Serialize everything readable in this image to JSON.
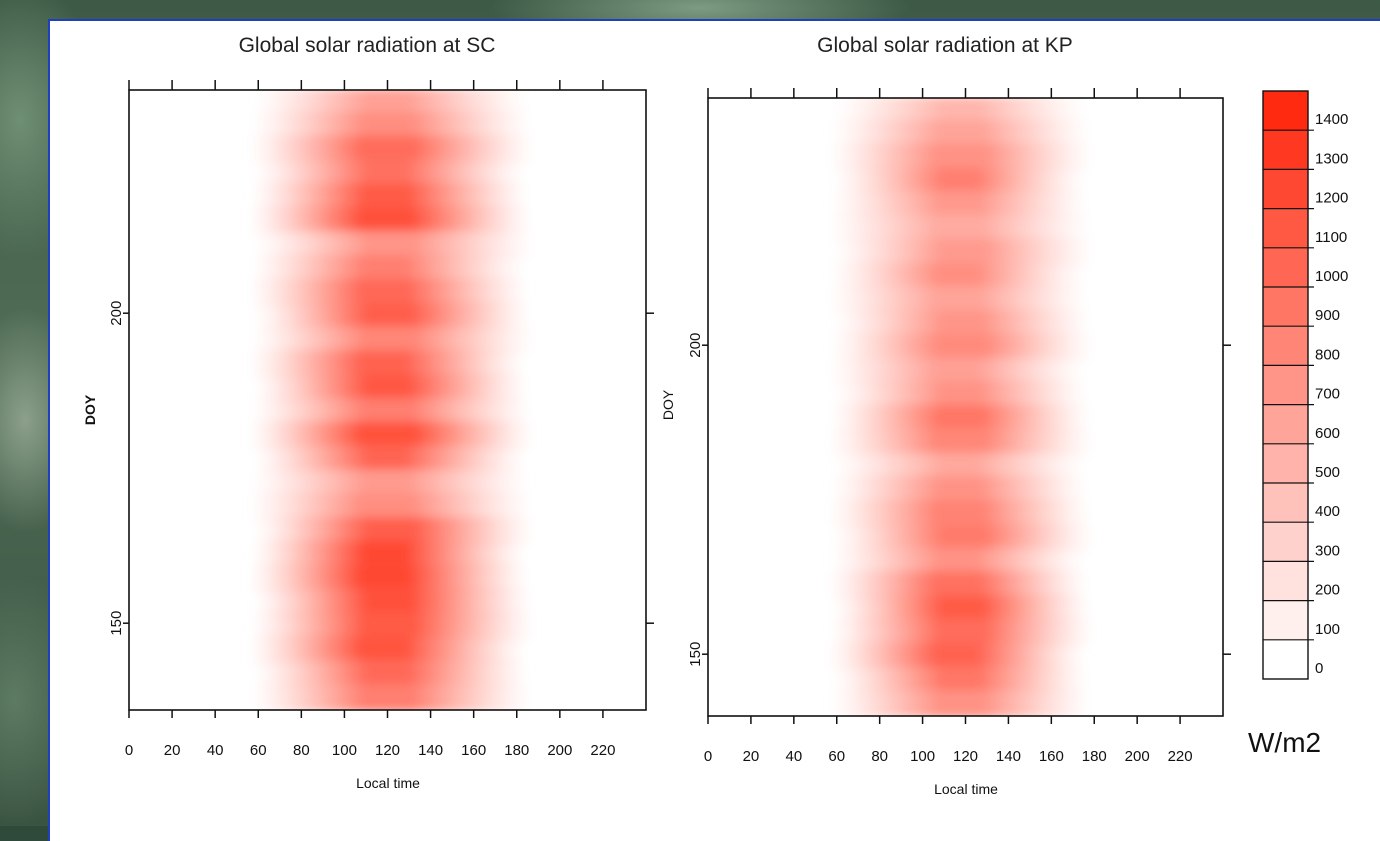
{
  "chart_data": [
    {
      "type": "heatmap",
      "title": "Global solar radiation at SC",
      "xlabel": "Local time",
      "ylabel": "DOY",
      "xlim": [
        0,
        240
      ],
      "ylim": [
        136,
        236
      ],
      "xticks": [
        "0",
        "20",
        "40",
        "60",
        "80",
        "100",
        "120",
        "140",
        "160",
        "180",
        "200",
        "220"
      ],
      "yticks": [
        "150",
        "200"
      ],
      "peak_center_x": 120,
      "active_range_x": [
        62,
        180
      ],
      "band_intensities": [
        0.52,
        0.62,
        0.8,
        0.78,
        0.9,
        0.96,
        0.58,
        0.7,
        0.82,
        0.88,
        0.66,
        0.86,
        0.92,
        0.7,
        0.95,
        0.85,
        0.55,
        0.62,
        0.88,
        1.0,
        1.0,
        0.96,
        0.9,
        0.94,
        0.82,
        0.7
      ]
    },
    {
      "type": "heatmap",
      "title": "Global solar radiation at KP",
      "xlabel": "Local time",
      "ylabel": "DOY",
      "xlim": [
        0,
        240
      ],
      "ylim": [
        140,
        240
      ],
      "xticks": [
        "0",
        "20",
        "40",
        "60",
        "80",
        "100",
        "120",
        "140",
        "160",
        "180",
        "200",
        "220"
      ],
      "yticks": [
        "150",
        "200"
      ],
      "peak_center_x": 118,
      "active_range_x": [
        62,
        172
      ],
      "band_intensities": [
        0.4,
        0.5,
        0.6,
        0.7,
        0.56,
        0.46,
        0.55,
        0.62,
        0.5,
        0.58,
        0.64,
        0.52,
        0.6,
        0.75,
        0.66,
        0.48,
        0.6,
        0.68,
        0.72,
        0.6,
        0.78,
        0.9,
        0.8,
        0.86,
        0.75,
        0.6
      ]
    }
  ],
  "colorbar": {
    "unit": "W/m2",
    "levels": [
      "0",
      "100",
      "200",
      "300",
      "400",
      "500",
      "600",
      "700",
      "800",
      "900",
      "1000",
      "1100",
      "1200",
      "1300",
      "1400"
    ],
    "max_value": 1500,
    "color_low": "#ffffff",
    "color_high": "#ff2a10"
  }
}
